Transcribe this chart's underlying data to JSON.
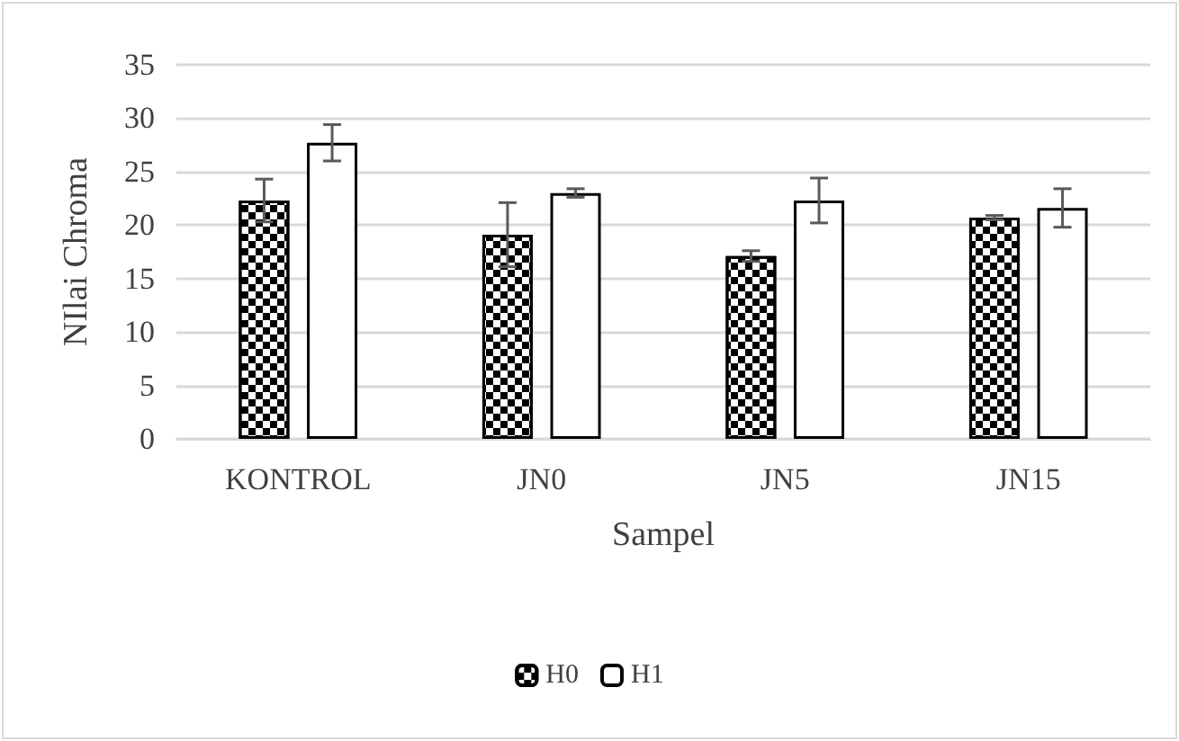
{
  "chart_data": {
    "type": "bar",
    "xlabel": "Sampel",
    "ylabel": "NIlai Chroma",
    "categories": [
      "KONTROL",
      "JN0",
      "JN5",
      "JN15"
    ],
    "series": [
      {
        "name": "H0",
        "color": "#000000",
        "values": [
          22.3,
          19.1,
          17.1,
          20.7
        ],
        "errors": [
          2.0,
          3.0,
          0.5,
          0.2
        ]
      },
      {
        "name": "H1",
        "color": "#ffffff",
        "values": [
          27.7,
          23.0,
          22.3,
          21.6
        ],
        "errors": [
          1.7,
          0.4,
          2.1,
          1.8
        ]
      }
    ],
    "ylim": [
      0,
      35
    ],
    "yticks": [
      0,
      5,
      10,
      15,
      20,
      25,
      30,
      35
    ],
    "grid": "y",
    "legend": "bottom"
  }
}
